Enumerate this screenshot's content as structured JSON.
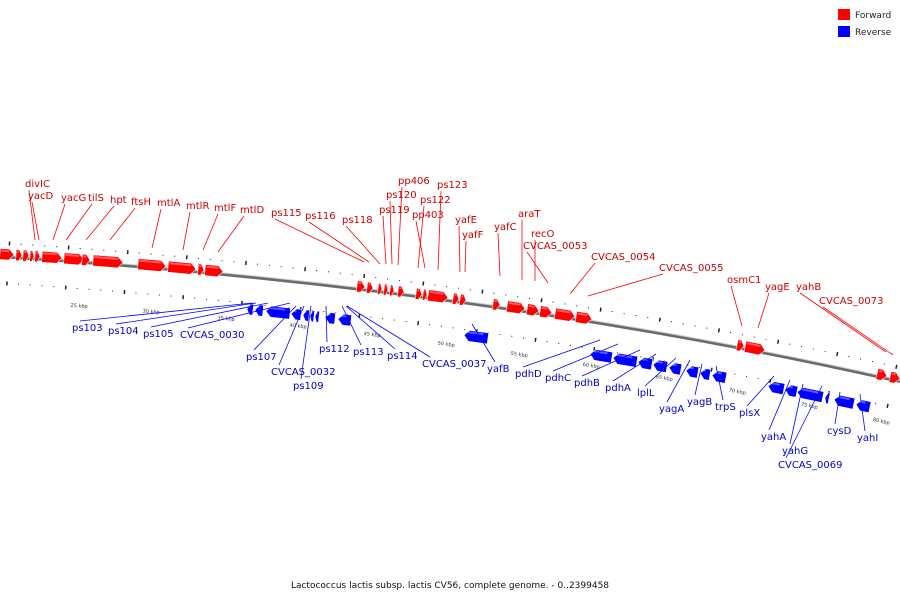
{
  "caption": "Lactococcus lactis subsp. lactis CV56, complete genome. - 0..2399458",
  "legend": [
    {
      "label": "Forward",
      "color": "#ff0000"
    },
    {
      "label": "Reverse",
      "color": "#0000ff"
    }
  ],
  "colors": {
    "forward": "#ff0000",
    "reverse": "#0000ff",
    "backbone": "#808080"
  },
  "kbp_labels": [
    "25 kbp",
    "30 kbp",
    "35 kbp",
    "40 kbp",
    "45 kbp",
    "50 kbp",
    "55 kbp",
    "60 kbp",
    "65 kbp",
    "70 kbp",
    "75 kbp",
    "80 kbp"
  ],
  "forward_labels": [
    "divIC",
    "yacD",
    "yacG",
    "tilS",
    "hpt",
    "ftsH",
    "mtlA",
    "mtlR",
    "mtlF",
    "mtlD",
    "ps115",
    "ps116",
    "ps118",
    "ps119",
    "ps120",
    "pp406",
    "ps122",
    "pp403",
    "ps123",
    "yafE",
    "yafF",
    "yafC",
    "araT",
    "recO",
    "CVCAS_0053",
    "CVCAS_0054",
    "CVCAS_0055",
    "osmC1",
    "yagE",
    "yahB",
    "CVCAS_0073"
  ],
  "reverse_labels": [
    "ps103",
    "ps104",
    "ps105",
    "CVCAS_0030",
    "ps107",
    "CVCAS_0032",
    "ps109",
    "ps112",
    "ps113",
    "ps114",
    "CVCAS_0037",
    "yafB",
    "pdhD",
    "pdhC",
    "pdhB",
    "pdhA",
    "lplL",
    "yagA",
    "yagB",
    "trpS",
    "plsX",
    "yahA",
    "yahG",
    "CVCAS_0069",
    "cysD",
    "yahI"
  ]
}
